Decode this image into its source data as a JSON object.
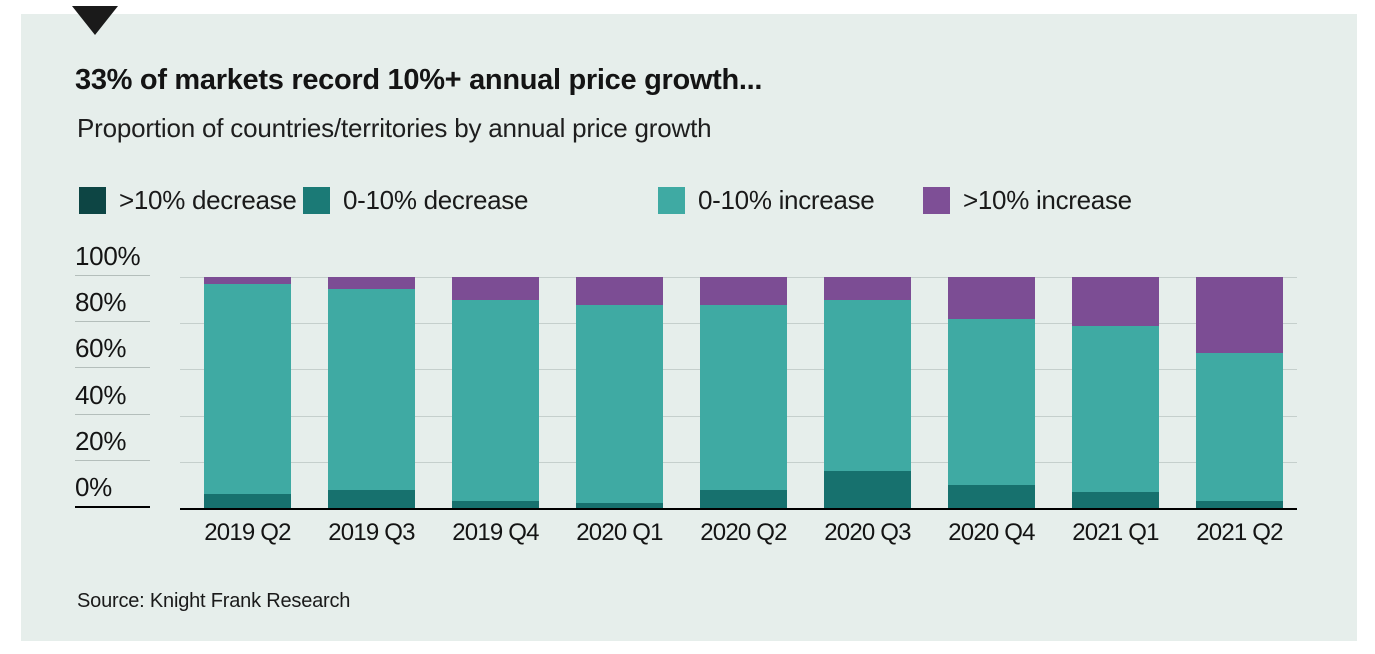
{
  "panel": {
    "background": "#e6eeeb"
  },
  "header": {
    "marker_icon": "down-triangle-icon",
    "title": "33% of markets record 10%+ annual price growth...",
    "subtitle": "Proportion of countries/territories by annual price growth"
  },
  "legend": [
    {
      "label": ">10% decrease",
      "color": "#0d4544"
    },
    {
      "label": "0-10% decrease",
      "color": "#1b7a76"
    },
    {
      "label": "0-10% increase",
      "color": "#3faaa3"
    },
    {
      "label": ">10% increase",
      "color": "#7e4f96"
    }
  ],
  "chart_data": {
    "type": "bar",
    "stacked": true,
    "title": "33% of markets record 10%+ annual price growth...",
    "subtitle": "Proportion of countries/territories by annual price growth",
    "categories": [
      "2019 Q2",
      "2019 Q3",
      "2019 Q4",
      "2020 Q1",
      "2020 Q2",
      "2020 Q3",
      "2020 Q4",
      "2021 Q1",
      "2021 Q2"
    ],
    "series": [
      {
        "name": ">10% decrease",
        "color": "#0d4544",
        "values": [
          0,
          0,
          0,
          0,
          0,
          0,
          0,
          0,
          0
        ]
      },
      {
        "name": "0-10% decrease",
        "color": "#17716e",
        "values": [
          6,
          8,
          3,
          2,
          8,
          16,
          10,
          7,
          3
        ]
      },
      {
        "name": "0-10% increase",
        "color": "#3faaa3",
        "values": [
          91,
          87,
          87,
          86,
          80,
          74,
          72,
          72,
          64
        ]
      },
      {
        "name": ">10% increase",
        "color": "#7c4d94",
        "values": [
          3,
          5,
          10,
          12,
          12,
          10,
          18,
          21,
          33
        ]
      }
    ],
    "xlabel": "",
    "ylabel": "",
    "ylim": [
      0,
      100
    ],
    "yticks": [
      "100%",
      "80%",
      "60%",
      "40%",
      "20%",
      "0%"
    ],
    "grid": true,
    "legend_position": "top"
  },
  "source": {
    "text": "Source: Knight Frank Research"
  }
}
